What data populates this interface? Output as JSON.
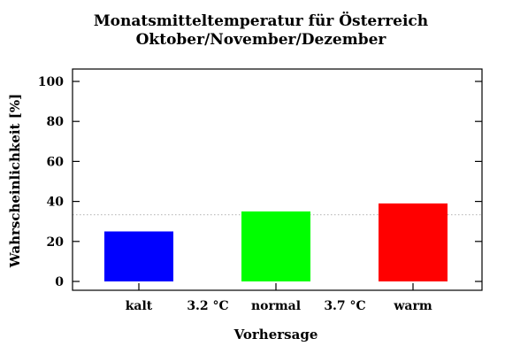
{
  "chart_data": {
    "type": "bar",
    "title": "Monatsmitteltemperatur für Österreich",
    "subtitle": "Oktober/November/Dezember",
    "xlabel": "Vorhersage",
    "ylabel": "Wahrscheinlichkeit [%]",
    "ylim": [
      0,
      105
    ],
    "yticks": [
      0,
      20,
      40,
      60,
      80,
      100
    ],
    "categories": [
      "kalt",
      "normal",
      "warm"
    ],
    "values": [
      25,
      35,
      39
    ],
    "colors": [
      "#0000ff",
      "#00ff00",
      "#ff0000"
    ],
    "threshold_labels": [
      "3.2 °C",
      "3.7 °C"
    ],
    "reference_line": 33.3,
    "grid": false
  }
}
